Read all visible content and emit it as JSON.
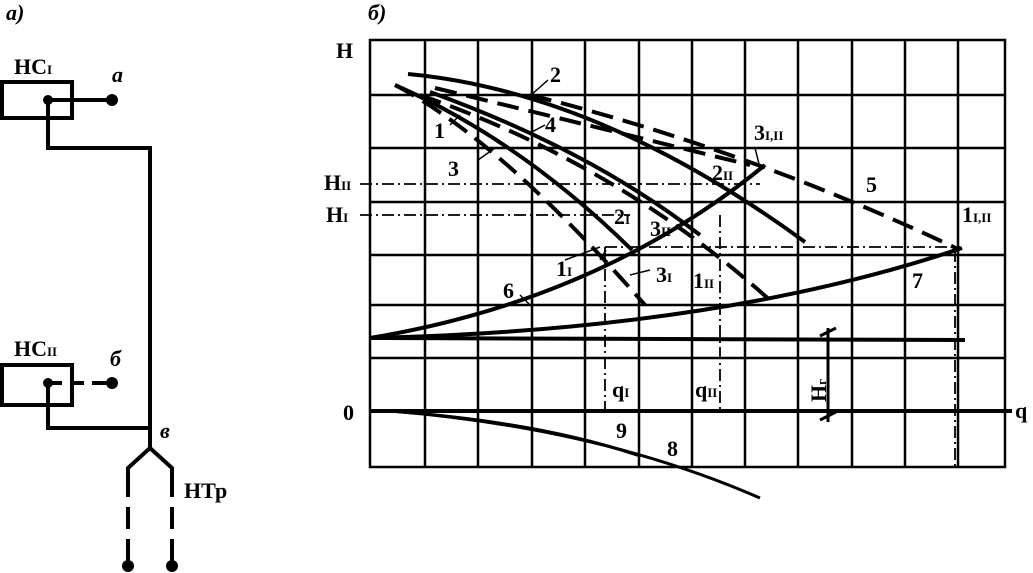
{
  "panel_a": {
    "label": "а)",
    "pump1": {
      "name": "НС",
      "sub": "I"
    },
    "point_a": "а",
    "pump2": {
      "name": "НС",
      "sub": "II"
    },
    "point_b": "б",
    "point_v": "в",
    "network": "НТр"
  },
  "panel_b": {
    "label": "б)",
    "axis_y": "H",
    "axis_x": "q",
    "origin": "0",
    "h_levels": [
      {
        "name": "H",
        "sub": "II"
      },
      {
        "name": "H",
        "sub": "I"
      }
    ],
    "flow_labels": [
      {
        "name": "q",
        "sub": "I"
      },
      {
        "name": "q",
        "sub": "II"
      }
    ],
    "static_head": {
      "name": "H",
      "sub": "г"
    },
    "curve_labels": [
      {
        "name": "1"
      },
      {
        "name": "2"
      },
      {
        "name": "3"
      },
      {
        "name": "4"
      },
      {
        "name": "5"
      },
      {
        "name": "6"
      },
      {
        "name": "7"
      },
      {
        "name": "8"
      },
      {
        "name": "9"
      },
      {
        "name": "1",
        "sub": "I"
      },
      {
        "name": "2",
        "sub": "I"
      },
      {
        "name": "3",
        "sub": "I"
      },
      {
        "name": "1",
        "sub": "II"
      },
      {
        "name": "2",
        "sub": "II"
      },
      {
        "name": "3",
        "sub": "II"
      },
      {
        "name": "3",
        "sub": "I,II"
      },
      {
        "name": "1",
        "sub": "I,II"
      }
    ]
  }
}
